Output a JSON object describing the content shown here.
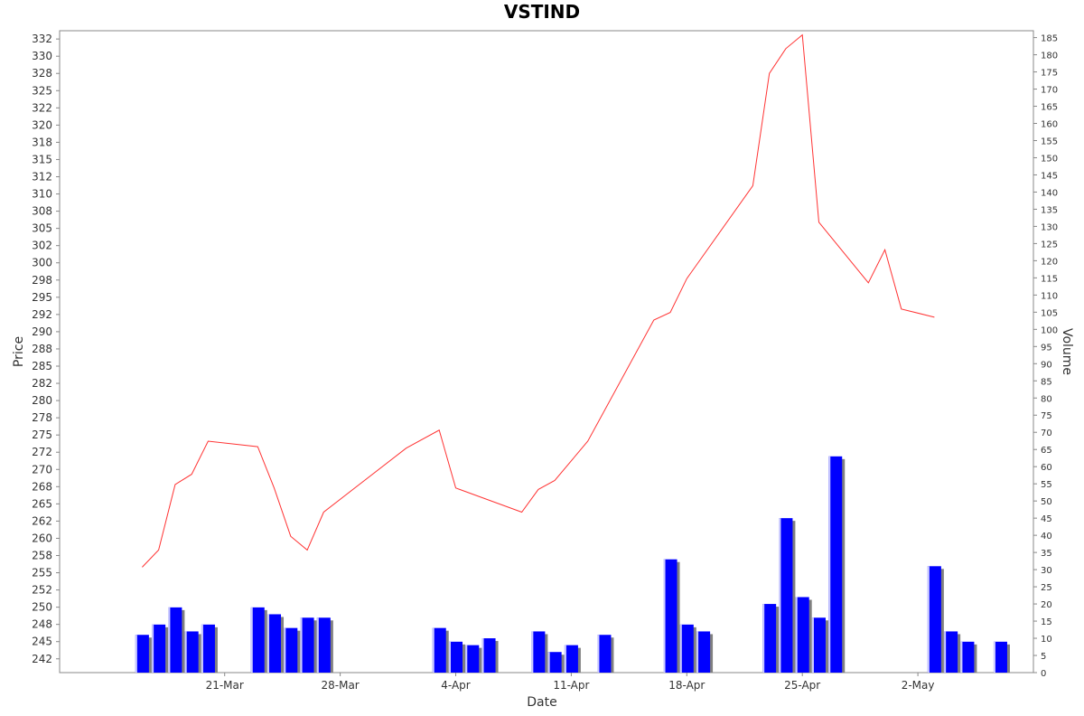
{
  "chart_data": {
    "type": "line",
    "title": "VSTIND",
    "xlabel": "Date",
    "ylabel_left": "Price",
    "ylabel_right": "Volume",
    "x_tick_labels": [
      "21-Mar",
      "28-Mar",
      "4-Apr",
      "11-Apr",
      "18-Apr",
      "25-Apr",
      "2-May"
    ],
    "price_ticks": [
      "242",
      "245",
      "248",
      "250",
      "252",
      "255",
      "258",
      "260",
      "262",
      "265",
      "268",
      "270",
      "272",
      "275",
      "278",
      "280",
      "282",
      "285",
      "288",
      "290",
      "292",
      "295",
      "298",
      "300",
      "302",
      "305",
      "308",
      "310",
      "312",
      "315",
      "318",
      "320",
      "322",
      "325",
      "328",
      "330",
      "332"
    ],
    "volume_ticks": [
      "0",
      "5",
      "10",
      "15",
      "20",
      "25",
      "30",
      "35",
      "40",
      "45",
      "50",
      "55",
      "60",
      "65",
      "70",
      "75",
      "80",
      "85",
      "90",
      "95",
      "100",
      "105",
      "110",
      "115",
      "120",
      "125",
      "130",
      "135",
      "140",
      "145",
      "150",
      "155",
      "160",
      "165",
      "170",
      "175",
      "180",
      "185"
    ],
    "ylim_price": [
      240,
      333.2
    ],
    "ylim_volume": [
      0,
      187
    ],
    "grid": false,
    "series": [
      {
        "name": "Price",
        "color": "#ff3333",
        "points": [
          [
            "2025-03-16",
            255.3
          ],
          [
            "2025-03-17",
            257.8
          ],
          [
            "2025-03-18",
            267.3
          ],
          [
            "2025-03-19",
            268.8
          ],
          [
            "2025-03-20",
            273.6
          ],
          [
            "2025-03-23",
            272.8
          ],
          [
            "2025-03-24",
            266.8
          ],
          [
            "2025-03-25",
            259.8
          ],
          [
            "2025-03-26",
            257.8
          ],
          [
            "2025-03-27",
            263.3
          ],
          [
            "2025-04-01",
            272.6
          ],
          [
            "2025-04-03",
            275.2
          ],
          [
            "2025-04-04",
            266.8
          ],
          [
            "2025-04-08",
            263.3
          ],
          [
            "2025-04-09",
            266.6
          ],
          [
            "2025-04-10",
            267.9
          ],
          [
            "2025-04-12",
            273.6
          ],
          [
            "2025-04-16",
            291.2
          ],
          [
            "2025-04-17",
            292.3
          ],
          [
            "2025-04-18",
            297.2
          ],
          [
            "2025-04-22",
            310.7
          ],
          [
            "2025-04-23",
            327.0
          ],
          [
            "2025-04-24",
            330.6
          ],
          [
            "2025-04-25",
            332.6
          ],
          [
            "2025-04-26",
            305.4
          ],
          [
            "2025-04-29",
            296.6
          ],
          [
            "2025-04-30",
            301.4
          ],
          [
            "2025-05-01",
            292.8
          ],
          [
            "2025-05-03",
            291.6
          ]
        ]
      },
      {
        "name": "Volume",
        "color": "#0000ff",
        "type": "bar",
        "points": [
          [
            "2025-03-16",
            11
          ],
          [
            "2025-03-17",
            14
          ],
          [
            "2025-03-18",
            19
          ],
          [
            "2025-03-19",
            12
          ],
          [
            "2025-03-20",
            14
          ],
          [
            "2025-03-23",
            19
          ],
          [
            "2025-03-24",
            17
          ],
          [
            "2025-03-25",
            13
          ],
          [
            "2025-03-26",
            16
          ],
          [
            "2025-03-27",
            16
          ],
          [
            "2025-04-03",
            13
          ],
          [
            "2025-04-04",
            9
          ],
          [
            "2025-04-05",
            8
          ],
          [
            "2025-04-06",
            10
          ],
          [
            "2025-04-09",
            12
          ],
          [
            "2025-04-10",
            6
          ],
          [
            "2025-04-11",
            8
          ],
          [
            "2025-04-13",
            11
          ],
          [
            "2025-04-17",
            33
          ],
          [
            "2025-04-18",
            14
          ],
          [
            "2025-04-19",
            12
          ],
          [
            "2025-04-23",
            20
          ],
          [
            "2025-04-24",
            45
          ],
          [
            "2025-04-25",
            22
          ],
          [
            "2025-04-26",
            16
          ],
          [
            "2025-04-27",
            63
          ],
          [
            "2025-05-03",
            31
          ],
          [
            "2025-05-04",
            12
          ],
          [
            "2025-05-05",
            9
          ],
          [
            "2025-05-07",
            9
          ]
        ]
      }
    ]
  }
}
